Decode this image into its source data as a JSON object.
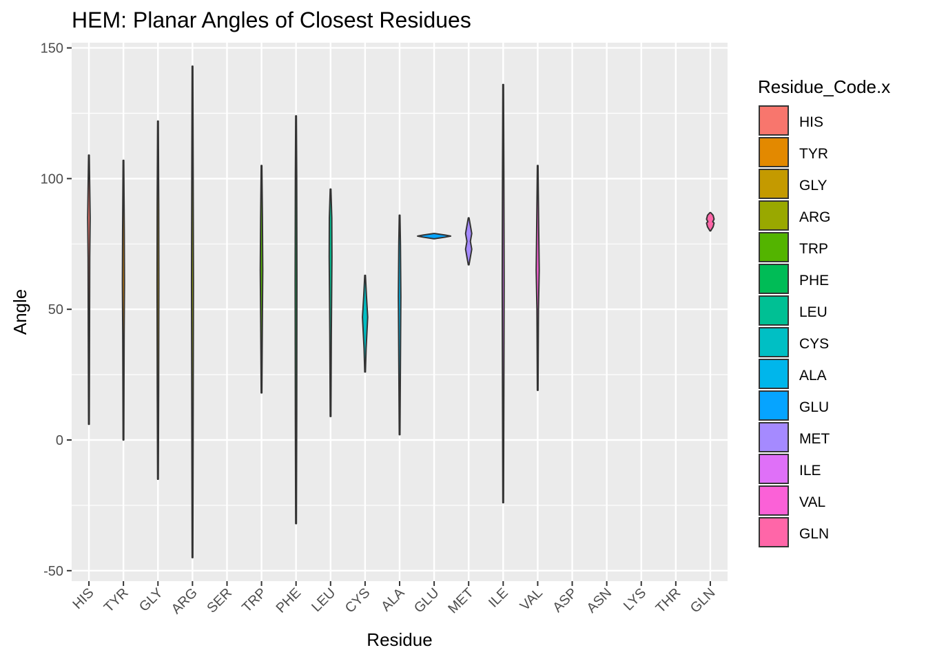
{
  "chart_data": {
    "type": "violin",
    "title": "HEM: Planar Angles of Closest Residues",
    "xlabel": "Residue",
    "ylabel": "Angle",
    "ylim": [
      -54,
      152
    ],
    "yticks": [
      -50,
      0,
      50,
      100,
      150
    ],
    "grid": true,
    "legend": {
      "title": "Residue_Code.x",
      "placement": "right",
      "entries": [
        {
          "label": "HIS",
          "color": "#F8766D"
        },
        {
          "label": "TYR",
          "color": "#E38900"
        },
        {
          "label": "GLY",
          "color": "#C49A00"
        },
        {
          "label": "ARG",
          "color": "#99A800"
        },
        {
          "label": "TRP",
          "color": "#53B400"
        },
        {
          "label": "PHE",
          "color": "#00BC56"
        },
        {
          "label": "LEU",
          "color": "#00C094"
        },
        {
          "label": "CYS",
          "color": "#00BFC4"
        },
        {
          "label": "ALA",
          "color": "#00B6EB"
        },
        {
          "label": "GLU",
          "color": "#06A4FF"
        },
        {
          "label": "MET",
          "color": "#A58AFF"
        },
        {
          "label": "ILE",
          "color": "#DF70F8"
        },
        {
          "label": "VAL",
          "color": "#FB61D7"
        },
        {
          "label": "GLN",
          "color": "#FF66A8"
        }
      ]
    },
    "categories": [
      "HIS",
      "TYR",
      "GLY",
      "ARG",
      "SER",
      "TRP",
      "PHE",
      "LEU",
      "CYS",
      "ALA",
      "GLU",
      "MET",
      "ILE",
      "VAL",
      "ASP",
      "ASN",
      "LYS",
      "THR",
      "GLN"
    ],
    "violins": [
      {
        "category": "HIS",
        "fill": "#F8766D",
        "min": 6,
        "max": 109,
        "profile": [
          [
            6,
            0.5
          ],
          [
            40,
            0.9
          ],
          [
            70,
            1.2
          ],
          [
            85,
            1.8
          ],
          [
            100,
            1
          ],
          [
            109,
            0.5
          ]
        ]
      },
      {
        "category": "TYR",
        "fill": "#E38900",
        "min": 0,
        "max": 107,
        "profile": [
          [
            0,
            0.5
          ],
          [
            40,
            1
          ],
          [
            60,
            1.5
          ],
          [
            80,
            1.2
          ],
          [
            107,
            0.5
          ]
        ]
      },
      {
        "category": "GLY",
        "fill": "#C49A00",
        "min": -15,
        "max": 122,
        "profile": [
          [
            -15,
            0.5
          ],
          [
            20,
            1
          ],
          [
            60,
            1.3
          ],
          [
            90,
            1.1
          ],
          [
            122,
            0.5
          ]
        ]
      },
      {
        "category": "ARG",
        "fill": "#99A800",
        "min": -45,
        "max": 143,
        "profile": [
          [
            -45,
            0.5
          ],
          [
            0,
            0.9
          ],
          [
            60,
            1.4
          ],
          [
            100,
            1
          ],
          [
            143,
            0.5
          ]
        ]
      },
      {
        "category": "TRP",
        "fill": "#53B400",
        "min": 18,
        "max": 105,
        "profile": [
          [
            18,
            0.5
          ],
          [
            45,
            1.2
          ],
          [
            65,
            1.8
          ],
          [
            85,
            1.3
          ],
          [
            105,
            0.5
          ]
        ]
      },
      {
        "category": "PHE",
        "fill": "#00BC56",
        "min": -32,
        "max": 124,
        "profile": [
          [
            -32,
            0.5
          ],
          [
            10,
            1
          ],
          [
            60,
            1.3
          ],
          [
            100,
            1
          ],
          [
            124,
            0.5
          ]
        ]
      },
      {
        "category": "LEU",
        "fill": "#00C094",
        "min": 9,
        "max": 96,
        "profile": [
          [
            9,
            0.5
          ],
          [
            40,
            1.1
          ],
          [
            70,
            2
          ],
          [
            85,
            1.8
          ],
          [
            96,
            0.5
          ]
        ]
      },
      {
        "category": "CYS",
        "fill": "#00BFC4",
        "min": 26,
        "max": 63,
        "profile": [
          [
            26,
            0.5
          ],
          [
            35,
            1.5
          ],
          [
            47,
            3.8
          ],
          [
            55,
            2
          ],
          [
            63,
            0.5
          ]
        ]
      },
      {
        "category": "ALA",
        "fill": "#00B6EB",
        "min": 2,
        "max": 86,
        "profile": [
          [
            2,
            0.5
          ],
          [
            30,
            1.2
          ],
          [
            55,
            1.8
          ],
          [
            75,
            1.2
          ],
          [
            86,
            0.5
          ]
        ]
      },
      {
        "category": "GLU",
        "fill": "#06A4FF",
        "min": 77,
        "max": 79,
        "profile": [
          [
            77,
            0.5
          ],
          [
            77.6,
            16
          ],
          [
            78,
            24
          ],
          [
            78.4,
            16
          ],
          [
            79,
            0.5
          ]
        ]
      },
      {
        "category": "MET",
        "fill": "#A58AFF",
        "min": 67,
        "max": 85,
        "profile": [
          [
            67,
            0.5
          ],
          [
            70,
            2.5
          ],
          [
            73,
            4.5
          ],
          [
            76,
            2.5
          ],
          [
            79,
            4.5
          ],
          [
            82,
            2.5
          ],
          [
            85,
            0.5
          ]
        ]
      },
      {
        "category": "ILE",
        "fill": "#DF70F8",
        "min": -24,
        "max": 136,
        "profile": [
          [
            -24,
            0.5
          ],
          [
            20,
            1
          ],
          [
            60,
            1.4
          ],
          [
            100,
            1
          ],
          [
            136,
            0.5
          ]
        ]
      },
      {
        "category": "VAL",
        "fill": "#FB61D7",
        "min": 19,
        "max": 105,
        "profile": [
          [
            19,
            0.5
          ],
          [
            50,
            1.1
          ],
          [
            65,
            2.2
          ],
          [
            80,
            1.5
          ],
          [
            105,
            0.5
          ]
        ]
      },
      {
        "category": "GLN",
        "fill": "#FF66A8",
        "min": 80,
        "max": 87,
        "profile": [
          [
            80,
            0.5
          ],
          [
            81.5,
            4
          ],
          [
            83,
            5.5
          ],
          [
            83.5,
            3.5
          ],
          [
            84.5,
            5.5
          ],
          [
            86,
            4
          ],
          [
            87,
            0.5
          ]
        ]
      }
    ]
  }
}
